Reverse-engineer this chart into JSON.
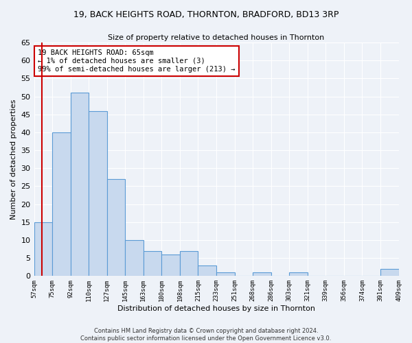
{
  "title": "19, BACK HEIGHTS ROAD, THORNTON, BRADFORD, BD13 3RP",
  "subtitle": "Size of property relative to detached houses in Thornton",
  "xlabel": "Distribution of detached houses by size in Thornton",
  "ylabel": "Number of detached properties",
  "bar_values": [
    15,
    40,
    51,
    46,
    27,
    10,
    7,
    6,
    7,
    3,
    1,
    0,
    1,
    0,
    1,
    0,
    0,
    0,
    0,
    2
  ],
  "bin_labels": [
    "57sqm",
    "75sqm",
    "92sqm",
    "110sqm",
    "127sqm",
    "145sqm",
    "163sqm",
    "180sqm",
    "198sqm",
    "215sqm",
    "233sqm",
    "251sqm",
    "268sqm",
    "286sqm",
    "303sqm",
    "321sqm",
    "339sqm",
    "356sqm",
    "374sqm",
    "391sqm",
    "409sqm"
  ],
  "bar_color": "#c8d9ee",
  "bar_edge_color": "#5b9bd5",
  "highlight_color": "#cc0000",
  "annotation_title": "19 BACK HEIGHTS ROAD: 65sqm",
  "annotation_line2": "← 1% of detached houses are smaller (3)",
  "annotation_line3": "99% of semi-detached houses are larger (213) →",
  "annotation_box_color": "#ffffff",
  "annotation_box_edge": "#cc0000",
  "ylim": [
    0,
    65
  ],
  "yticks": [
    0,
    5,
    10,
    15,
    20,
    25,
    30,
    35,
    40,
    45,
    50,
    55,
    60,
    65
  ],
  "footer_line1": "Contains HM Land Registry data © Crown copyright and database right 2024.",
  "footer_line2": "Contains public sector information licensed under the Open Government Licence v3.0.",
  "bg_color": "#eef2f8",
  "grid_color": "#ffffff"
}
